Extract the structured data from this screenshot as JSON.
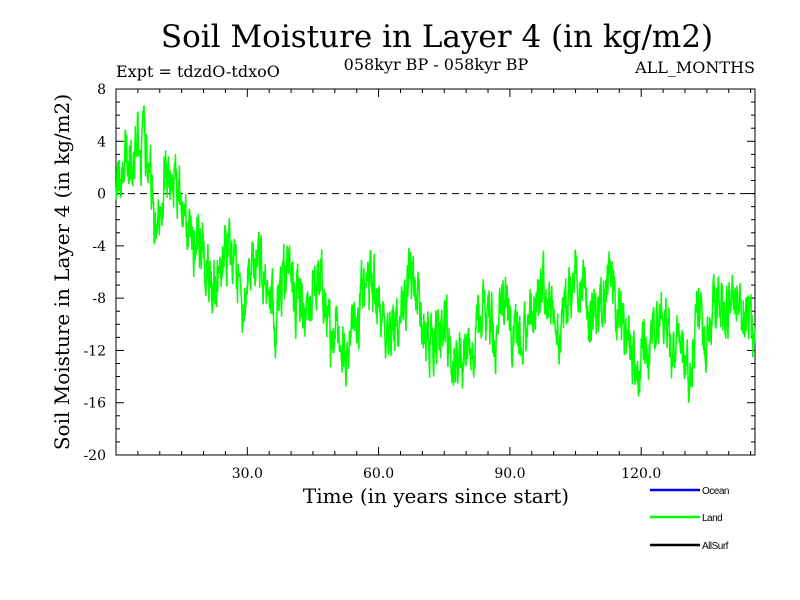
{
  "chart_data": {
    "type": "line",
    "title": "Soil Moisture in Layer 4 (in kg/m2)",
    "subtitle": "058kyr BP - 058kyr BP",
    "left_annotation": "Expt = tdzdO-tdxoO",
    "right_annotation": "ALL_MONTHS",
    "xlabel": "Time (in years since start)",
    "ylabel": "Soil Moisture in Layer 4 (in kg/m2)",
    "xlim": [
      0,
      146
    ],
    "ylim": [
      -20,
      8
    ],
    "x_ticks": [
      30,
      60,
      90,
      120
    ],
    "x_tick_labels": [
      "30.0",
      "60.0",
      "90.0",
      "120.0"
    ],
    "y_ticks": [
      8,
      4,
      0,
      -4,
      -8,
      -12,
      -16,
      -20
    ],
    "y_tick_labels": [
      "8",
      "4",
      "0",
      "-4",
      "-8",
      "-12",
      "-16",
      "-20"
    ],
    "reference_line": {
      "y": 0,
      "style": "dashed"
    },
    "legend": [
      {
        "name": "Ocean",
        "color": "#0000ff"
      },
      {
        "name": "Land",
        "color": "#00ff00"
      },
      {
        "name": "AllSurf",
        "color": "#000000"
      }
    ],
    "legend_position": "bottom-right",
    "series": [
      {
        "name": "Land",
        "color": "#00ff00",
        "sampling": "monthly (12 per year), approximate",
        "anchors_x": [
          0,
          1,
          3,
          5,
          7,
          9,
          11,
          13,
          15,
          17,
          19,
          21,
          23,
          25,
          27,
          29,
          31,
          33,
          35,
          37,
          39,
          41,
          43,
          45,
          47,
          49,
          51,
          53,
          55,
          57,
          59,
          61,
          63,
          65,
          67,
          69,
          71,
          73,
          75,
          77,
          79,
          81,
          83,
          85,
          87,
          89,
          91,
          93,
          95,
          97,
          99,
          101,
          103,
          105,
          107,
          109,
          111,
          113,
          115,
          117,
          119,
          121,
          123,
          125,
          127,
          129,
          131,
          133,
          135,
          137,
          139,
          141,
          143,
          145,
          146
        ],
        "anchors_y": [
          0.5,
          2.0,
          3.5,
          4.5,
          3.0,
          -2.5,
          1.0,
          1.5,
          -1.0,
          -4.0,
          -3.0,
          -5.5,
          -7.5,
          -4.5,
          -6.0,
          -9.5,
          -5.0,
          -6.0,
          -9.0,
          -9.5,
          -5.5,
          -7.5,
          -10.0,
          -7.0,
          -6.5,
          -12.0,
          -10.5,
          -12.5,
          -9.0,
          -8.0,
          -7.5,
          -10.0,
          -10.5,
          -9.5,
          -6.5,
          -8.5,
          -10.5,
          -11.5,
          -9.5,
          -13.0,
          -12.0,
          -13.5,
          -10.0,
          -9.0,
          -11.0,
          -8.0,
          -10.5,
          -12.0,
          -9.0,
          -7.5,
          -8.5,
          -11.5,
          -9.0,
          -6.0,
          -7.5,
          -10.5,
          -8.0,
          -7.0,
          -9.5,
          -11.5,
          -13.0,
          -12.5,
          -9.5,
          -8.5,
          -12.0,
          -11.0,
          -13.5,
          -9.0,
          -11.5,
          -8.0,
          -9.5,
          -7.5,
          -9.0,
          -10.5,
          -11.0
        ],
        "noise_amplitude": 2.0,
        "noise_seed": 58
      }
    ]
  }
}
